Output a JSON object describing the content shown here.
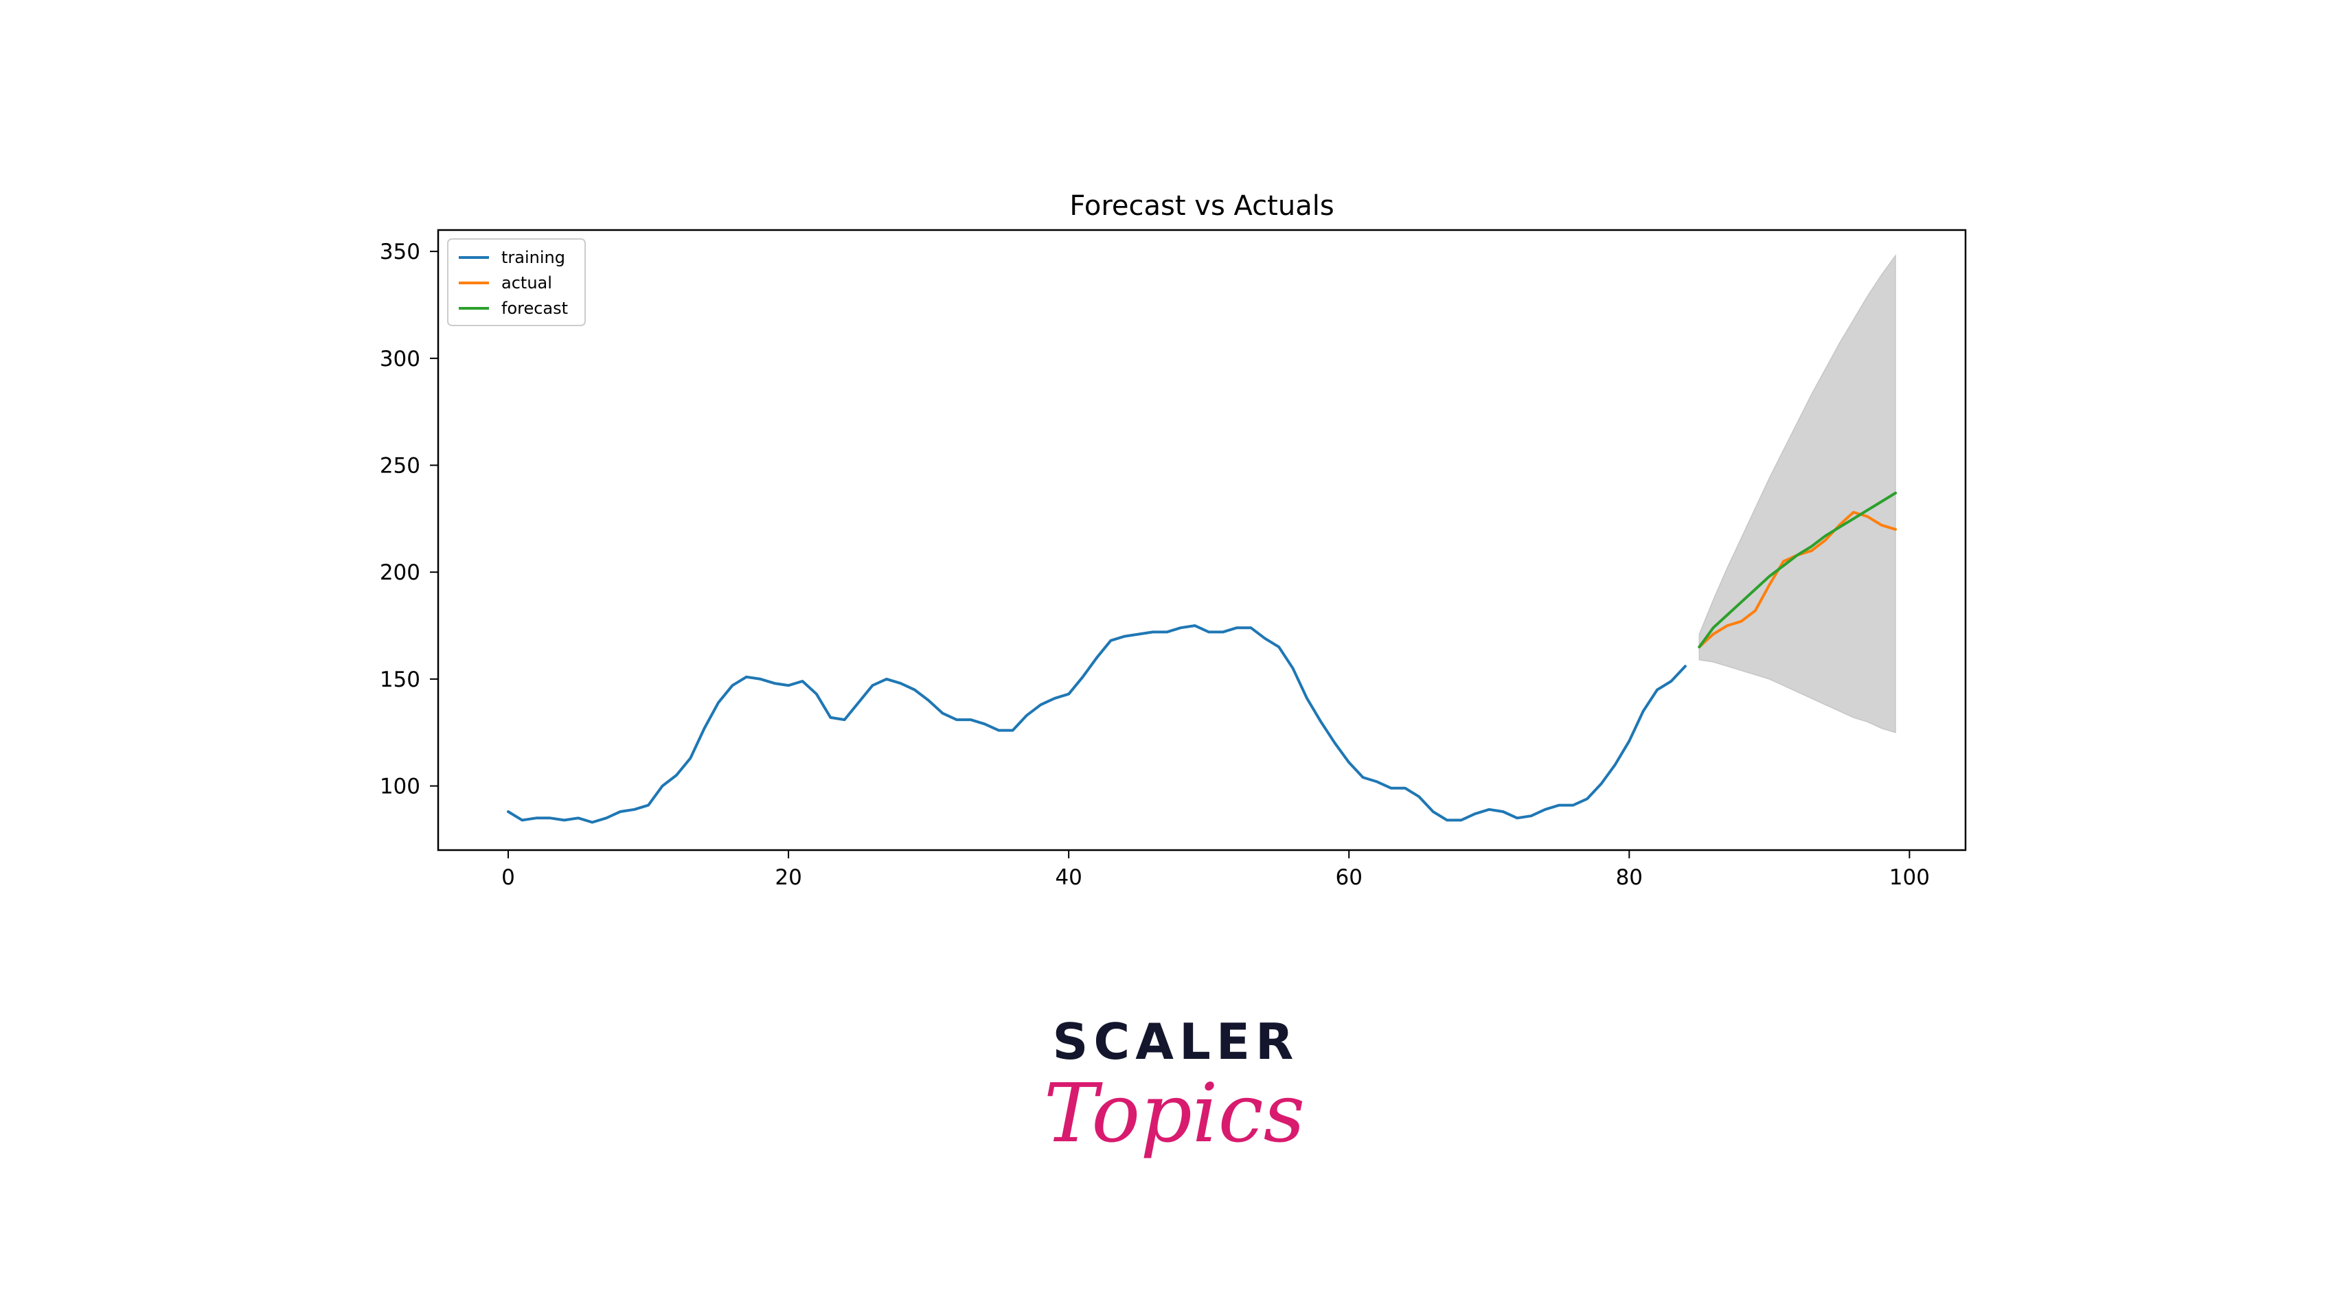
{
  "colors": {
    "training": "#1f77b4",
    "actual": "#ff7f0e",
    "forecast": "#2ca02c",
    "band": "#d3d3d3",
    "logo_dark": "#14162d",
    "logo_pink": "#d81b6e"
  },
  "logo": {
    "top": "SCALER",
    "bottom": "Topics"
  },
  "chart_data": {
    "type": "line",
    "title": "Forecast vs Actuals",
    "xlabel": "",
    "ylabel": "",
    "xlim": [
      -5,
      104
    ],
    "ylim": [
      70,
      360
    ],
    "xticks": [
      0,
      20,
      40,
      60,
      80,
      100
    ],
    "yticks": [
      100,
      150,
      200,
      250,
      300,
      350
    ],
    "grid": false,
    "legend_position": "top-left",
    "series": [
      {
        "name": "training",
        "x": [
          0,
          1,
          2,
          3,
          4,
          5,
          6,
          7,
          8,
          9,
          10,
          11,
          12,
          13,
          14,
          15,
          16,
          17,
          18,
          19,
          20,
          21,
          22,
          23,
          24,
          25,
          26,
          27,
          28,
          29,
          30,
          31,
          32,
          33,
          34,
          35,
          36,
          37,
          38,
          39,
          40,
          41,
          42,
          43,
          44,
          45,
          46,
          47,
          48,
          49,
          50,
          51,
          52,
          53,
          54,
          55,
          56,
          57,
          58,
          59,
          60,
          61,
          62,
          63,
          64,
          65,
          66,
          67,
          68,
          69,
          70,
          71,
          72,
          73,
          74,
          75,
          76,
          77,
          78,
          79,
          80,
          81,
          82,
          83,
          84
        ],
        "y": [
          88,
          84,
          85,
          85,
          84,
          85,
          83,
          85,
          88,
          89,
          91,
          100,
          105,
          113,
          127,
          139,
          147,
          151,
          150,
          148,
          147,
          149,
          143,
          132,
          131,
          139,
          147,
          150,
          148,
          145,
          140,
          134,
          131,
          131,
          129,
          126,
          126,
          133,
          138,
          141,
          143,
          151,
          160,
          168,
          170,
          171,
          172,
          172,
          174,
          175,
          172,
          172,
          174,
          174,
          169,
          165,
          155,
          141,
          130,
          120,
          111,
          104,
          102,
          99,
          99,
          95,
          88,
          84,
          84,
          87,
          89,
          88,
          85,
          86,
          89,
          91,
          91,
          94,
          101,
          110,
          121,
          135,
          145,
          149,
          156
        ]
      },
      {
        "name": "actual",
        "x": [
          85,
          86,
          87,
          88,
          89,
          90,
          91,
          92,
          93,
          94,
          95,
          96,
          97,
          98,
          99
        ],
        "y": [
          165,
          171,
          175,
          177,
          182,
          194,
          205,
          208,
          210,
          215,
          222,
          228,
          226,
          222,
          220
        ]
      },
      {
        "name": "forecast",
        "x": [
          85,
          86,
          87,
          88,
          89,
          90,
          91,
          92,
          93,
          94,
          95,
          96,
          97,
          98,
          99
        ],
        "y": [
          165,
          174,
          180,
          186,
          192,
          198,
          203,
          208,
          212,
          217,
          221,
          225,
          229,
          233,
          237
        ]
      }
    ],
    "confidence_band": {
      "x": [
        85,
        86,
        87,
        88,
        89,
        90,
        91,
        92,
        93,
        94,
        95,
        96,
        97,
        98,
        99
      ],
      "lower": [
        159,
        158,
        156,
        154,
        152,
        150,
        147,
        144,
        141,
        138,
        135,
        132,
        130,
        127,
        125
      ],
      "upper": [
        171,
        187,
        202,
        216,
        230,
        244,
        257,
        270,
        283,
        295,
        307,
        318,
        329,
        339,
        348
      ]
    }
  }
}
